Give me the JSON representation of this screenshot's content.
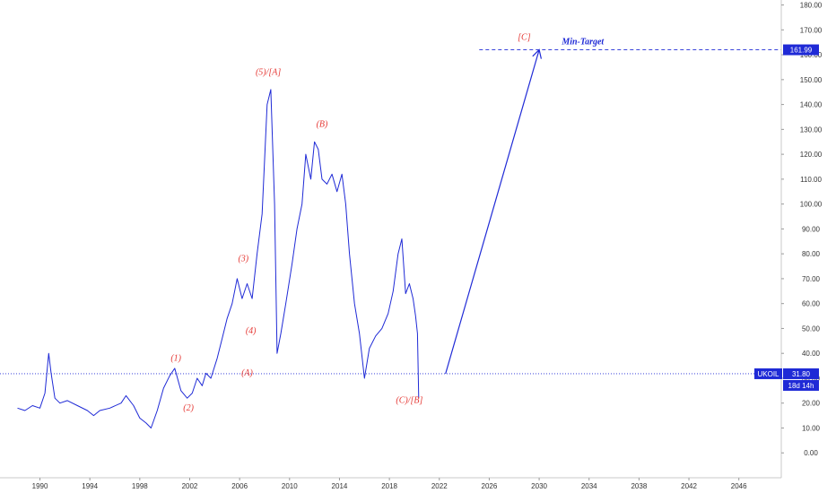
{
  "chart_data": {
    "type": "line",
    "title": "",
    "xlabel": "",
    "ylabel": "",
    "xlim": [
      1986.8,
      2049.4
    ],
    "ylim": [
      -10,
      182
    ],
    "x_ticks": [
      1990,
      1994,
      1998,
      2002,
      2006,
      2010,
      2014,
      2018,
      2022,
      2026,
      2030,
      2034,
      2038,
      2042,
      2046
    ],
    "y_ticks": [
      0,
      10,
      20,
      30,
      40,
      50,
      60,
      70,
      80,
      90,
      100,
      110,
      120,
      130,
      140,
      150,
      160,
      170,
      180
    ],
    "y_tick_decimals": 2,
    "grid": false,
    "series": [
      {
        "color": "#1f2ad6",
        "x": [
          1988.2,
          1988.8,
          1989.4,
          1990.0,
          1990.4,
          1990.7,
          1990.9,
          1991.2,
          1991.6,
          1992.2,
          1993.0,
          1993.8,
          1994.3,
          1994.8,
          1995.6,
          1996.5,
          1996.9,
          1997.5,
          1998.0,
          1998.5,
          1998.9,
          1999.4,
          1999.9,
          2000.4,
          2000.8,
          2001.3,
          2001.8,
          2002.2,
          2002.6,
          2003.0,
          2003.3,
          2003.7,
          2004.2,
          2004.6,
          2005.0,
          2005.4,
          2005.8,
          2006.2,
          2006.6,
          2007.0,
          2007.4,
          2007.8,
          2008.2,
          2008.5,
          2008.8,
          2009.0,
          2009.3,
          2009.7,
          2010.2,
          2010.6,
          2011.0,
          2011.3,
          2011.7,
          2012.0,
          2012.3,
          2012.6,
          2013.0,
          2013.4,
          2013.8,
          2014.2,
          2014.5,
          2014.8,
          2015.2,
          2015.6,
          2016.0,
          2016.4,
          2016.9,
          2017.4,
          2017.9,
          2018.3,
          2018.7,
          2019.0,
          2019.3,
          2019.6,
          2019.9,
          2020.1,
          2020.25,
          2020.35
        ],
        "y": [
          18,
          17,
          19,
          18,
          24,
          40,
          32,
          22,
          20,
          21,
          19,
          17,
          15,
          17,
          18,
          20,
          23,
          19,
          14,
          12,
          10,
          17,
          26,
          31,
          34,
          25,
          22,
          24,
          30,
          27,
          32,
          30,
          38,
          46,
          54,
          60,
          70,
          62,
          68,
          62,
          80,
          96,
          140,
          146,
          100,
          40,
          48,
          60,
          76,
          90,
          100,
          120,
          110,
          125,
          122,
          110,
          108,
          112,
          105,
          112,
          100,
          80,
          60,
          48,
          30,
          42,
          47,
          50,
          56,
          65,
          80,
          86,
          64,
          68,
          62,
          55,
          48,
          22
        ]
      },
      {
        "color": "#1f2ad6",
        "x": [
          2022.5,
          2030.0
        ],
        "y": [
          31.8,
          161.99
        ]
      }
    ],
    "reference_lines": [
      {
        "value": 161.99,
        "style": "dashed",
        "color": "#1f2ad6",
        "x_start": 2025.2,
        "tag": "161.99"
      },
      {
        "value": 31.8,
        "style": "dotted",
        "color": "#1f2ad6",
        "tag": "31.80",
        "symbol": "UKOIL",
        "countdown": "18d 14h"
      }
    ],
    "annotations": [
      {
        "text": "(1)",
        "x": 2000.9,
        "y": 37
      },
      {
        "text": "(2)",
        "x": 2001.9,
        "y": 17
      },
      {
        "text": "(3)",
        "x": 2006.3,
        "y": 77
      },
      {
        "text": "(4)",
        "x": 2006.9,
        "y": 48
      },
      {
        "text": "(5)/[A]",
        "x": 2008.3,
        "y": 152
      },
      {
        "text": "(A)",
        "x": 2006.6,
        "y": 31
      },
      {
        "text": "(B)",
        "x": 2012.6,
        "y": 131
      },
      {
        "text": "(C)/[B]",
        "x": 2019.6,
        "y": 20
      },
      {
        "text": "[C]",
        "x": 2028.8,
        "y": 166
      }
    ],
    "target_label": "Min-Target",
    "target_label_x": 2033.5
  }
}
